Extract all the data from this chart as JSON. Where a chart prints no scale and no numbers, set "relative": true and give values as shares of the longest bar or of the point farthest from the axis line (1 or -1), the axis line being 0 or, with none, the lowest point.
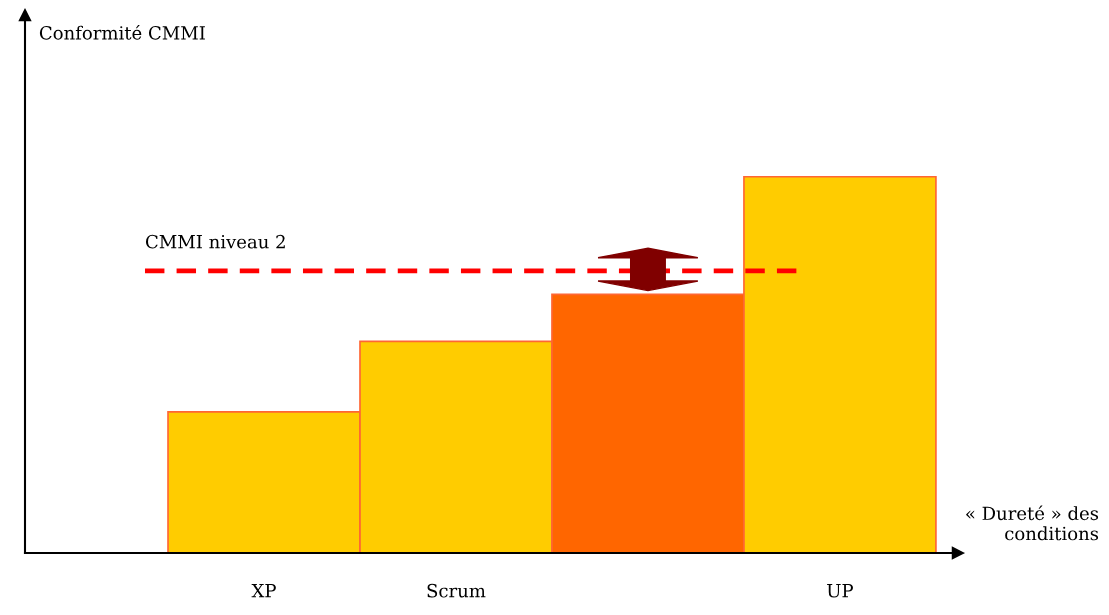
{
  "chart_data": {
    "type": "bar",
    "relative": true,
    "annotations": [
      "Conformité CMMI"
    ],
    "xlabel": "« Dureté » des\nconditions",
    "categories": [
      "XP",
      "Scrum",
      null,
      "UP"
    ],
    "values": [
      0.375,
      0.5625,
      0.6875,
      1
    ],
    "colors": [
      "#ffcc00",
      "#ffcc00",
      "#ff6600",
      "#ffcc00"
    ],
    "ref_lines": [
      {
        "axis": "y",
        "value": 0.75,
        "label": "CMMI niveau 2",
        "color": "#ff0000",
        "line_style": "dashed"
      }
    ]
  }
}
